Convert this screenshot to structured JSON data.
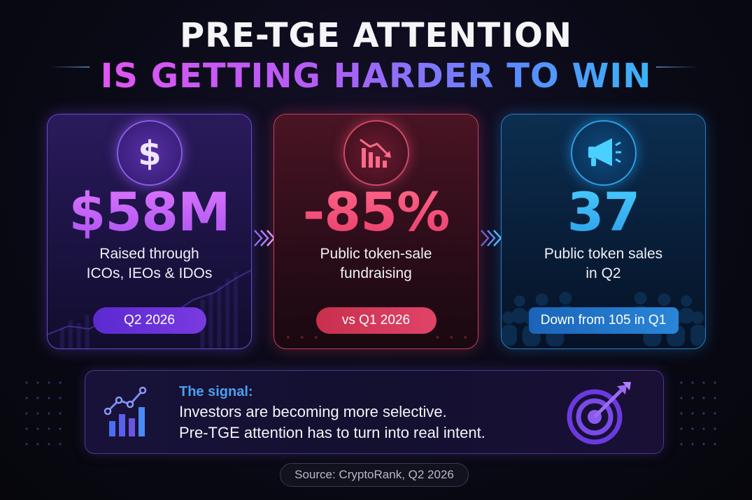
{
  "title": {
    "line1": "PRE-TGE ATTENTION",
    "line2": "IS GETTING HARDER TO WIN"
  },
  "cards": [
    {
      "icon": "dollar-icon",
      "value": "$58M",
      "desc_line1": "Raised through",
      "desc_line2": "ICOs, IEOs & IDOs",
      "pill": "Q2 2026",
      "color": "#b35cf5"
    },
    {
      "icon": "declining-bar-chart-icon",
      "value": "-85%",
      "desc_line1": "Public token-sale",
      "desc_line2": "fundraising",
      "pill": "vs Q1 2026",
      "color": "#ff5078"
    },
    {
      "icon": "megaphone-icon",
      "value": "37",
      "desc_line1": "Public token sales",
      "desc_line2": "in Q2",
      "pill": "Down from 105 in Q1",
      "color": "#3ab4f5"
    }
  ],
  "signal": {
    "heading": "The signal:",
    "line1": "Investors are becoming more selective.",
    "line2": "Pre-TGE attention has to turn into real intent.",
    "icon": "growth-chart-icon",
    "target_icon": "target-arrow-icon"
  },
  "source": "Source: CryptoRank, Q2 2026"
}
